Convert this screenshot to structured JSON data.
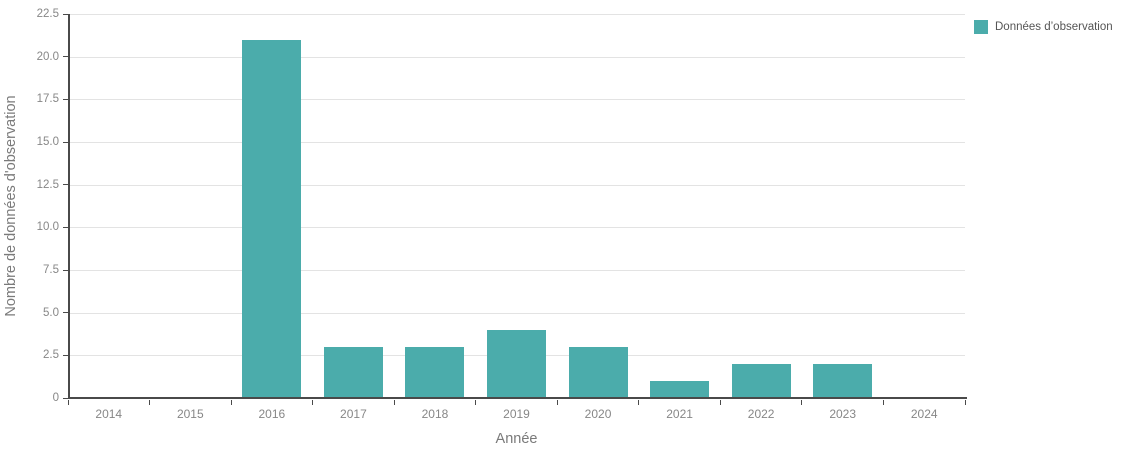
{
  "chart_data": {
    "type": "bar",
    "categories": [
      "2014",
      "2015",
      "2016",
      "2017",
      "2018",
      "2019",
      "2020",
      "2021",
      "2022",
      "2023",
      "2024"
    ],
    "values": [
      0,
      0,
      21,
      3,
      3,
      4,
      3,
      1,
      2,
      2,
      0
    ],
    "title": "",
    "xlabel": "Année",
    "ylabel": "Nombre de données d'observation",
    "ylim": [
      0,
      22.5
    ],
    "ytick_step": 2.5,
    "ytick_labels": [
      "0",
      "2.5",
      "5.0",
      "7.5",
      "10.0",
      "12.5",
      "15.0",
      "17.5",
      "20.0",
      "22.5"
    ],
    "grid": "horizontal",
    "legend_position": "top-right",
    "series": [
      {
        "name": "Données d’observation",
        "color": "#4bacab"
      }
    ]
  },
  "legend": {
    "label": "Données d’observation",
    "swatch_color": "#4bacab"
  },
  "axes": {
    "x_title": "Année",
    "y_title": "Nombre de données d'observation"
  },
  "colors": {
    "bar": "#4bacab",
    "gridline": "#e3e3e3",
    "axis_line": "#4a4a4a",
    "tick_label": "#878787",
    "axis_title": "#7a7a7a",
    "legend_text": "#555555",
    "background": "#ffffff"
  }
}
